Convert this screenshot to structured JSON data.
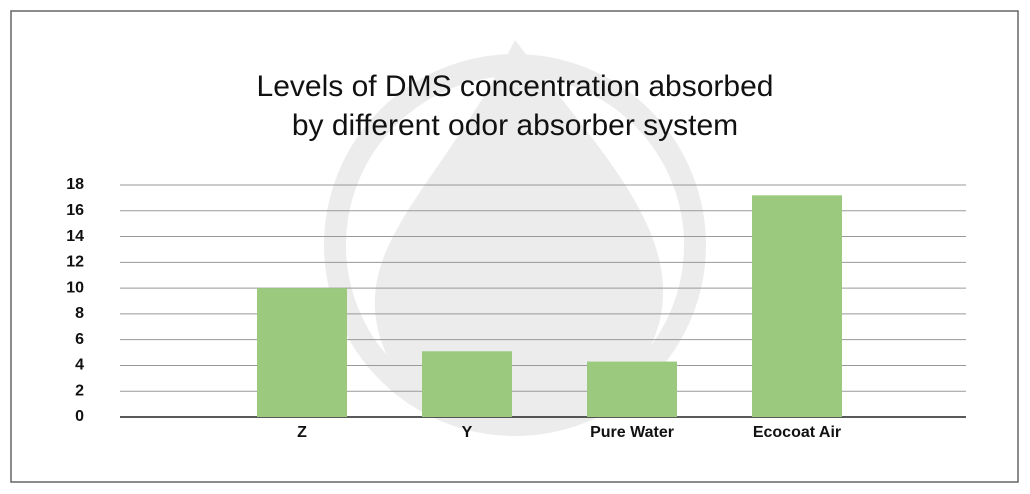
{
  "chart_data": {
    "type": "bar",
    "title": [
      "Levels of DMS concentration absorbed",
      "by different odor absorber system"
    ],
    "categories": [
      "Z",
      "Y",
      "Pure Water",
      "Ecocoat Air"
    ],
    "values": [
      10.0,
      5.1,
      4.3,
      17.2
    ],
    "color": "#9bc97e",
    "ylim": [
      0,
      18
    ],
    "yticks": [
      0,
      2,
      4,
      6,
      8,
      10,
      12,
      14,
      16,
      18
    ],
    "grid": true
  }
}
